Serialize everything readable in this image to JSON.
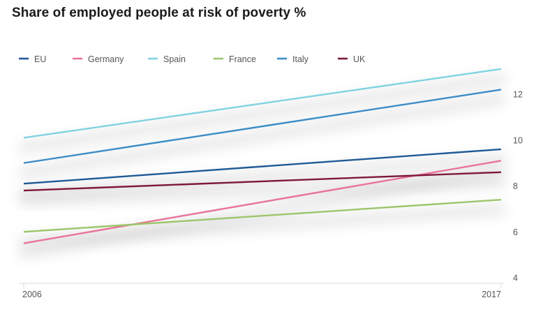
{
  "chart_data": {
    "type": "line",
    "title": "Share of employed people at risk of poverty %",
    "xlabel": "",
    "ylabel": "",
    "x": [
      "2006",
      "2017"
    ],
    "ylim": [
      4,
      13
    ],
    "yticks": [
      "4",
      "6",
      "8",
      "10",
      "12"
    ],
    "grid": false,
    "legend_position": "top-left",
    "series": [
      {
        "name": "EU",
        "color": "#1f5a96",
        "values": [
          8.1,
          9.6
        ]
      },
      {
        "name": "Germany",
        "color": "#e8749a",
        "values": [
          5.5,
          9.1
        ]
      },
      {
        "name": "Spain",
        "color": "#7fd3e0",
        "values": [
          10.1,
          13.1
        ]
      },
      {
        "name": "France",
        "color": "#9cc66b",
        "values": [
          6.0,
          7.4
        ]
      },
      {
        "name": "Italy",
        "color": "#3a8cc7",
        "values": [
          9.0,
          12.2
        ]
      },
      {
        "name": "UK",
        "color": "#7d1836",
        "values": [
          7.8,
          8.6
        ]
      }
    ]
  }
}
